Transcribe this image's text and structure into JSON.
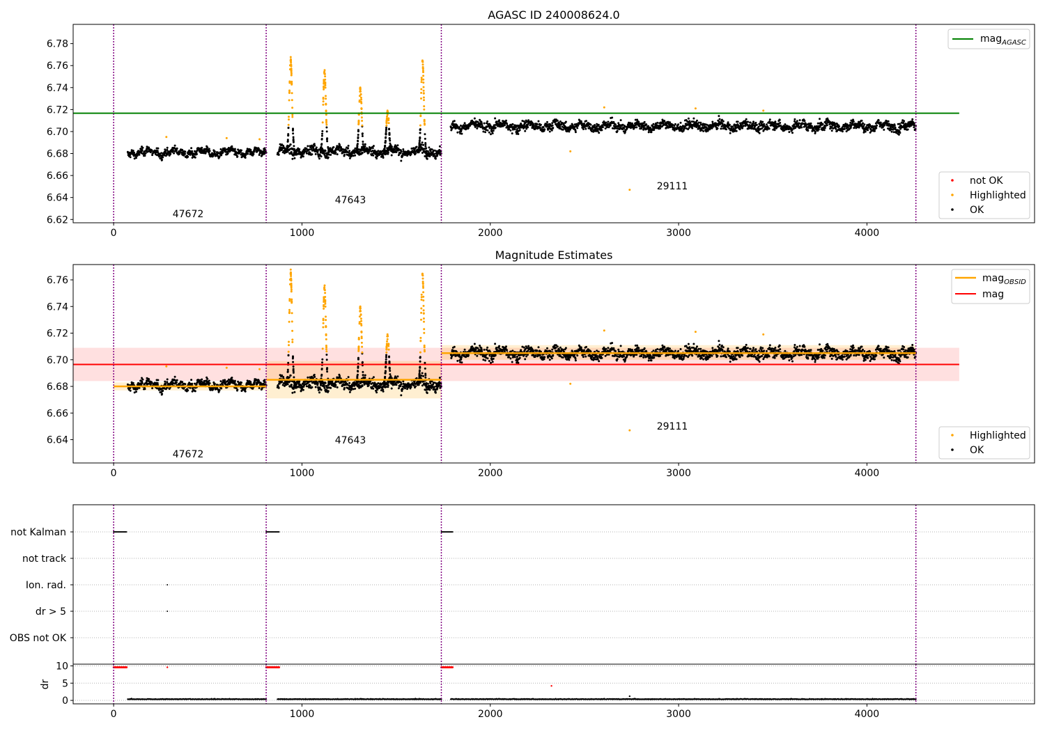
{
  "chart_data": [
    {
      "type": "scatter",
      "title": "AGASC ID 240008624.0",
      "xlim": [
        -215,
        4890
      ],
      "ylim": [
        6.617,
        6.7975
      ],
      "yticks": [
        "6.62",
        "6.64",
        "6.66",
        "6.68",
        "6.70",
        "6.72",
        "6.74",
        "6.76",
        "6.78"
      ],
      "xticks": [
        "0",
        "1000",
        "2000",
        "3000",
        "4000"
      ],
      "obs_boundaries": [
        0,
        810,
        1740,
        4260
      ],
      "obs_labels": [
        {
          "text": "47672",
          "x": 400,
          "y": 6.623
        },
        {
          "text": "47643",
          "x": 1270,
          "y": 6.636
        },
        {
          "text": "29111",
          "x": 3000,
          "y": 6.649
        }
      ],
      "reference_line": {
        "name": "mag",
        "subscript": "AGASC",
        "y": 6.7167,
        "x": [
          -215,
          4490
        ],
        "color": "#008000"
      },
      "point_legend": [
        {
          "name": "not OK",
          "color": "#ff0000"
        },
        {
          "name": "Highlighted",
          "color": "#ffa500"
        },
        {
          "name": "OK",
          "color": "#000000"
        }
      ],
      "legend_placement": [
        "top-right",
        "bottom-right"
      ],
      "series": [
        {
          "name": "OK",
          "color": "#000000",
          "segments": [
            {
              "x": [
                75,
                810
              ],
              "mean": 6.681,
              "spread": 0.004
            },
            {
              "x": [
                870,
                1740
              ],
              "mean": 6.682,
              "spread": 0.005
            },
            {
              "x": [
                1790,
                4260
              ],
              "mean": 6.705,
              "spread": 0.005
            }
          ]
        },
        {
          "name": "Highlighted",
          "color": "#ffa500",
          "flares": [
            {
              "x": 940,
              "peak": 6.765
            },
            {
              "x": 1120,
              "peak": 6.754
            },
            {
              "x": 1310,
              "peak": 6.739
            },
            {
              "x": 1455,
              "peak": 6.718
            },
            {
              "x": 1640,
              "peak": 6.764
            }
          ],
          "points": [
            [
              2425,
              6.682
            ],
            [
              2740,
              6.647
            ],
            [
              2605,
              6.722
            ],
            [
              3090,
              6.721
            ],
            [
              3450,
              6.719
            ],
            [
              280,
              6.695
            ],
            [
              600,
              6.694
            ],
            [
              775,
              6.693
            ]
          ]
        }
      ]
    },
    {
      "type": "scatter",
      "title": "Magnitude Estimates",
      "xlim": [
        -215,
        4890
      ],
      "ylim": [
        6.6225,
        6.7715
      ],
      "yticks": [
        "6.64",
        "6.66",
        "6.68",
        "6.70",
        "6.72",
        "6.74",
        "6.76"
      ],
      "xticks": [
        "0",
        "1000",
        "2000",
        "3000",
        "4000"
      ],
      "obs_boundaries": [
        0,
        810,
        1740,
        4260
      ],
      "obs_labels": [
        {
          "text": "47672",
          "x": 400,
          "y": 6.628
        },
        {
          "text": "47643",
          "x": 1270,
          "y": 6.638
        },
        {
          "text": "29111",
          "x": 3000,
          "y": 6.648
        }
      ],
      "mag": {
        "name": "mag",
        "y": 6.6965,
        "band": [
          6.684,
          6.709
        ],
        "x": [
          -215,
          4490
        ],
        "color": "#ff0000"
      },
      "mag_obsid": {
        "name": "mag",
        "subscript": "OBSID",
        "color": "#ffa500",
        "segments": [
          {
            "x": [
              0,
              810
            ],
            "y": 6.68,
            "band": [
              6.677,
              6.683
            ]
          },
          {
            "x": [
              810,
              1740
            ],
            "y": 6.685,
            "band": [
              6.671,
              6.699
            ]
          },
          {
            "x": [
              1740,
              4260
            ],
            "y": 6.705,
            "band": [
              6.7,
              6.711
            ]
          }
        ]
      },
      "legend_top": [
        "mag_OBSID",
        "mag"
      ],
      "point_legend": [
        {
          "name": "Highlighted",
          "color": "#ffa500"
        },
        {
          "name": "OK",
          "color": "#000000"
        }
      ],
      "legend_placement": [
        "top-right",
        "bottom-right"
      ]
    },
    {
      "type": "scatter",
      "title": "",
      "categories": [
        "not Kalman",
        "not track",
        "Ion. rad.",
        "dr > 5",
        "OBS not OK"
      ],
      "flags": [
        {
          "category": "not Kalman",
          "x": [
            [
              0,
              70
            ],
            [
              810,
              880
            ],
            [
              1740,
              1800
            ]
          ]
        },
        {
          "category": "Ion. rad.",
          "x": [
            [
              285,
              285
            ]
          ]
        },
        {
          "category": "dr > 5",
          "x": [
            [
              285,
              285
            ]
          ]
        }
      ],
      "obs_boundaries": [
        0,
        810,
        1740,
        4260
      ],
      "xlim": [
        -215,
        4890
      ],
      "grid": "horizontal dotted"
    },
    {
      "type": "scatter",
      "ylabel": "dr",
      "yticks": [
        "0",
        "5",
        "10"
      ],
      "ylim": [
        -1,
        10.5
      ],
      "xticks": [
        "0",
        "1000",
        "2000",
        "3000",
        "4000"
      ],
      "xlim": [
        -215,
        4890
      ],
      "obs_boundaries": [
        0,
        810,
        1740,
        4260
      ],
      "high_points": {
        "color": "#ff0000",
        "y": 9.6,
        "x": [
          [
            0,
            70
          ],
          [
            810,
            880
          ],
          [
            1740,
            1800
          ]
        ],
        "extra": [
          [
            285,
            9.6
          ],
          [
            2325,
            4.2
          ],
          [
            2740,
            1.2
          ]
        ]
      },
      "low_points": {
        "color": "#000000",
        "y": 0.3
      }
    }
  ],
  "colors": {
    "ok": "#000000",
    "highlighted": "#ffa500",
    "not_ok": "#ff0000",
    "agasc": "#008000",
    "boundary": "#800080"
  }
}
